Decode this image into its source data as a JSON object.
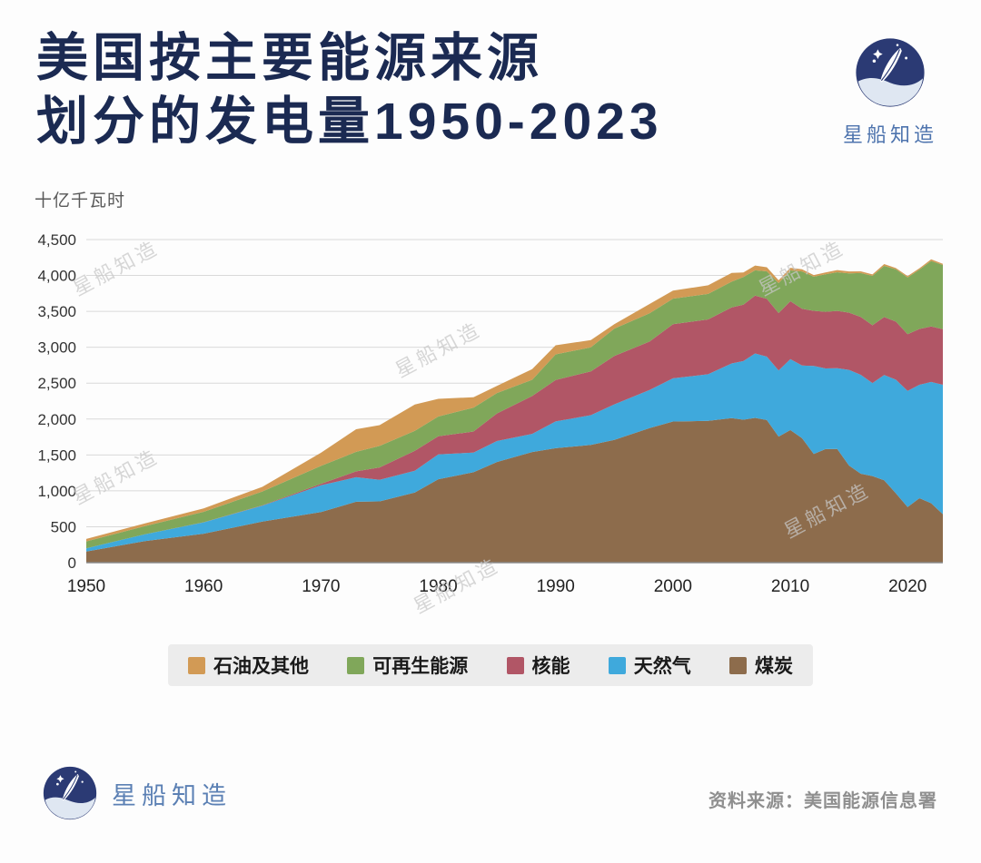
{
  "header": {
    "title_line1": "美国按主要能源来源",
    "title_line2": "划分的发电量1950-2023",
    "brand_name": "星船知造"
  },
  "watermark": {
    "text": "星船知造"
  },
  "chart_data": {
    "type": "area",
    "stacked": true,
    "unit_label": "十亿千瓦时",
    "grid": true,
    "legend_position": "bottom",
    "ylim": [
      0,
      4500
    ],
    "yticks": [
      0,
      500,
      1000,
      1500,
      2000,
      2500,
      3000,
      3500,
      4000,
      4500
    ],
    "ytick_labels": [
      "0",
      "500",
      "1,000",
      "1,500",
      "2,000",
      "2,500",
      "3,000",
      "3,500",
      "4,000",
      "4,500"
    ],
    "xticks": [
      1950,
      1960,
      1970,
      1980,
      1990,
      2000,
      2010,
      2020
    ],
    "x": [
      1950,
      1955,
      1960,
      1965,
      1970,
      1973,
      1975,
      1978,
      1980,
      1983,
      1985,
      1988,
      1990,
      1993,
      1995,
      1998,
      2000,
      2003,
      2005,
      2006,
      2007,
      2008,
      2009,
      2010,
      2011,
      2012,
      2013,
      2014,
      2015,
      2016,
      2017,
      2018,
      2019,
      2020,
      2021,
      2022,
      2023
    ],
    "series": [
      {
        "name": "煤炭",
        "color": "#8d6c4c",
        "values": [
          155,
          301,
          403,
          571,
          704,
          848,
          853,
          976,
          1162,
          1259,
          1402,
          1541,
          1594,
          1639,
          1709,
          1874,
          1966,
          1974,
          2013,
          1991,
          2016,
          1986,
          1756,
          1847,
          1733,
          1514,
          1581,
          1582,
          1352,
          1239,
          1206,
          1146,
          966,
          774,
          898,
          828,
          675
        ]
      },
      {
        "name": "天然气",
        "color": "#3fa9dc",
        "values": [
          45,
          95,
          158,
          222,
          373,
          341,
          300,
          305,
          346,
          274,
          292,
          253,
          373,
          415,
          496,
          531,
          601,
          650,
          761,
          816,
          897,
          883,
          921,
          988,
          1013,
          1225,
          1124,
          1127,
          1333,
          1378,
          1296,
          1468,
          1582,
          1617,
          1579,
          1689,
          1802
        ]
      },
      {
        "name": "核能",
        "color": "#b15666",
        "values": [
          0,
          0,
          1,
          4,
          22,
          83,
          173,
          276,
          251,
          294,
          384,
          527,
          577,
          610,
          673,
          674,
          754,
          764,
          782,
          787,
          806,
          806,
          799,
          807,
          790,
          769,
          789,
          797,
          797,
          806,
          805,
          807,
          809,
          790,
          778,
          772,
          775
        ]
      },
      {
        "name": "可再生能源",
        "color": "#80a75a",
        "values": [
          96,
          113,
          146,
          194,
          248,
          272,
          300,
          280,
          276,
          332,
          284,
          226,
          357,
          336,
          382,
          394,
          356,
          355,
          358,
          385,
          353,
          382,
          417,
          428,
          520,
          475,
          522,
          539,
          546,
          611,
          687,
          713,
          728,
          792,
          826,
          913,
          894
        ]
      },
      {
        "name": "石油及其他",
        "color": "#d29a55",
        "values": [
          34,
          38,
          48,
          65,
          184,
          314,
          289,
          365,
          246,
          145,
          100,
          149,
          127,
          100,
          61,
          129,
          111,
          120,
          122,
          64,
          66,
          58,
          39,
          37,
          30,
          23,
          27,
          30,
          28,
          24,
          21,
          25,
          18,
          17,
          19,
          23,
          16
        ]
      }
    ],
    "legend_order": [
      "石油及其他",
      "可再生能源",
      "核能",
      "天然气",
      "煤炭"
    ]
  },
  "footer": {
    "brand_name": "星船知造",
    "source_text": "资料来源：美国能源信息署"
  }
}
